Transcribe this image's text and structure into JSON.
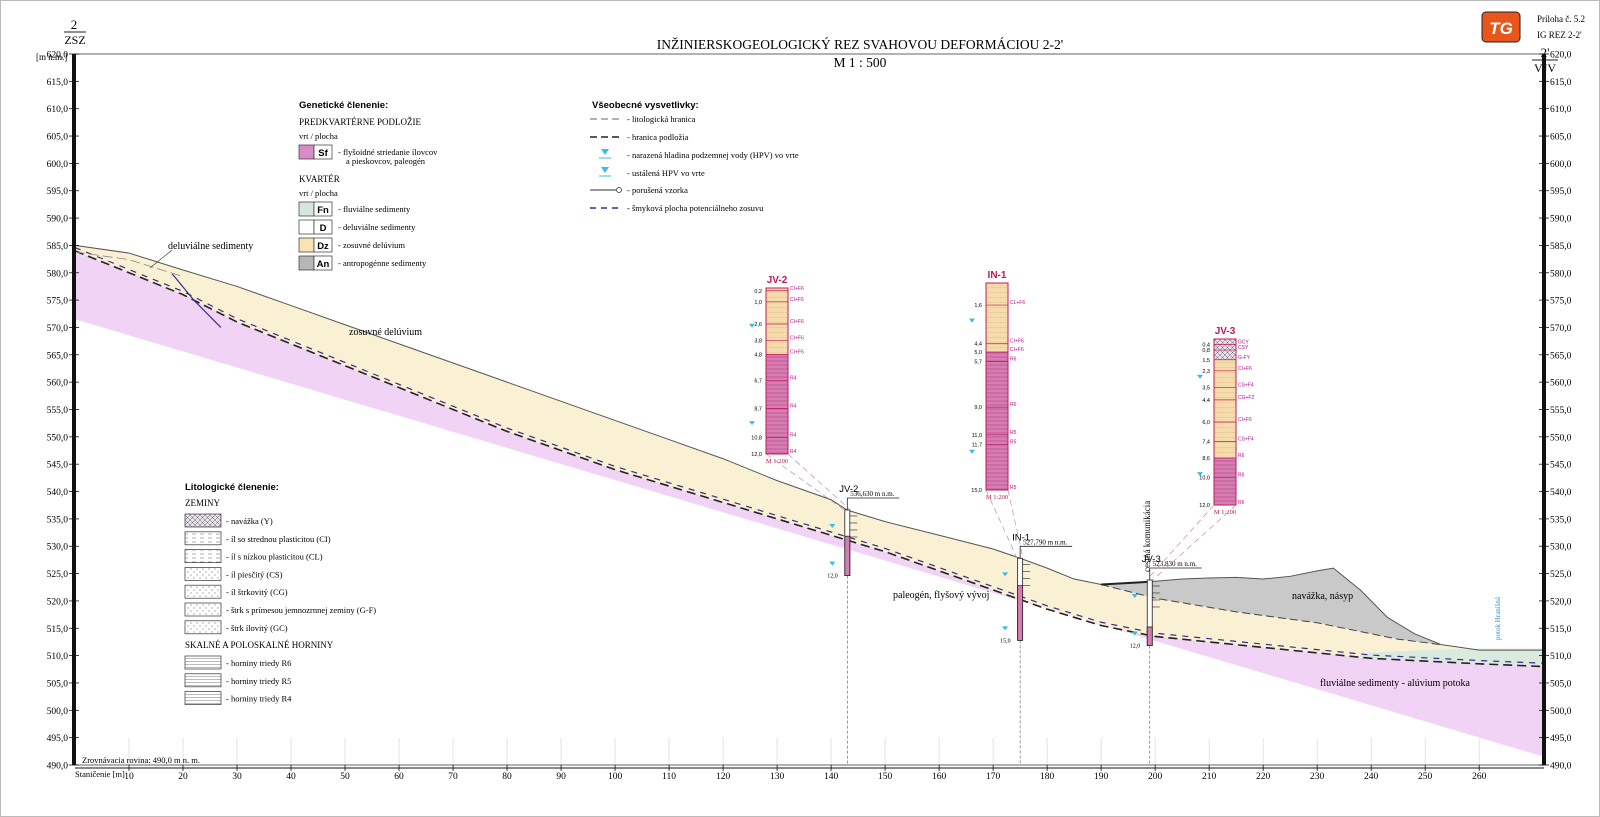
{
  "header": {
    "title": "INŽINIERSKOGEOLOGICKÝ REZ SVAHOVOU DEFORMÁCIOU 2-2'",
    "scale": "M 1 : 500",
    "appendix": "Príloha č. 5.2",
    "drawing_id": "IG REZ 2-2'",
    "logo_text": "TG"
  },
  "section_ends": {
    "left": {
      "number": "2",
      "direction": "ZSZ"
    },
    "right": {
      "number": "2'",
      "direction": "VJV"
    }
  },
  "axes": {
    "y_unit": "[m n.m.]",
    "y_ticks": [
      "620,0",
      "615,0",
      "610,0",
      "605,0",
      "600,0",
      "595,0",
      "590,0",
      "585,0",
      "580,0",
      "575,0",
      "570,0",
      "565,0",
      "560,0",
      "555,0",
      "550,0",
      "545,0",
      "540,0",
      "535,0",
      "530,0",
      "525,0",
      "520,0",
      "515,0",
      "510,0",
      "505,0",
      "500,0",
      "495,0",
      "490,0"
    ],
    "x_label": "Staničenie [m]",
    "x_ticks": [
      "10",
      "20",
      "30",
      "40",
      "50",
      "60",
      "70",
      "80",
      "90",
      "100",
      "110",
      "120",
      "130",
      "140",
      "150",
      "160",
      "170",
      "180",
      "190",
      "200",
      "210",
      "220",
      "230",
      "240",
      "250",
      "260"
    ],
    "datum": "Zrovnávacia rovina: 490,0 m n. m."
  },
  "legend_genetic": {
    "title": "Genetické členenie:",
    "group1": "PREDKVARTÉRNE PODLOŽIE",
    "group1_sub": "vrt / plocha",
    "group2": "KVARTÉR",
    "group2_sub": "vrt / plocha",
    "items": [
      {
        "code": "Sf",
        "line1": "- flyšoidné striedanie ílovcov",
        "line2": "a pieskovcov, paleogén",
        "color": "#d98cc8"
      },
      {
        "code": "Fn",
        "line1": "- fluviálne sedimenty",
        "line2": "",
        "color": "#d6e6dc"
      },
      {
        "code": "D",
        "line1": "- deluviálne sedimenty",
        "line2": "",
        "color": "#ffffff"
      },
      {
        "code": "Dz",
        "line1": "- zosuvné delúvium",
        "line2": "",
        "color": "#f7e3b4"
      },
      {
        "code": "An",
        "line1": "- antropogénne sedimenty",
        "line2": "",
        "color": "#b7b7b7"
      }
    ]
  },
  "legend_general": {
    "title": "Všeobecné vysvetlivky:",
    "items": [
      "- litologická hranica",
      "- hranica podložia",
      "- narazená hladina podzemnej vody (HPV) vo vrte",
      "- ustálená HPV vo vrte",
      "- porušená vzorka",
      "- šmyková plocha potenciálneho zosuvu"
    ]
  },
  "legend_litho": {
    "title": "Litologické členenie:",
    "soils_title": "ZEMINY",
    "soils": [
      "- navážka (Y)",
      "- íl so strednou plasticitou (CI)",
      "- íl s nízkou plasticitou (CL)",
      "- íl piesčitý (CS)",
      "- íl štrkovitý (CG)",
      "- štrk s prímesou jemnozrnnej zeminy (G-F)",
      "- štrk ílovitý (GC)"
    ],
    "rocks_title": "SKALNÉ A POLOSKALNÉ HORNINY",
    "rocks": [
      "- horniny triedy R6",
      "- horniny triedy R5",
      "- horniny triedy R4"
    ]
  },
  "profile_labels": {
    "deluvial": "deluviálne sedimenty",
    "landslide": "zosuvné delúvium",
    "paleogene": "paleogén, flyšový vývoj",
    "fill": "navážka, násyp",
    "fluvial": "fluviálne sedimenty - alúvium potoka",
    "road": "cestná komunikácia",
    "stream": "potok Hranišná"
  },
  "boreholes": [
    {
      "name": "JV-2",
      "elevation": "536,630 m n.m.",
      "depth_total": "12,0",
      "scale": "M 1:200",
      "depths": [
        "0,2",
        "1,0",
        "2,6",
        "3,8",
        "4,8",
        "6,7",
        "8,7",
        "10,8",
        "12,0"
      ],
      "codes": [
        "CI+F6",
        "CI+F6",
        "CI+F6",
        "CI+F6",
        "CI+F6",
        "R4",
        "R4",
        "R4",
        "R4"
      ]
    },
    {
      "name": "IN-1",
      "elevation": "527,790 m n.m.",
      "depth_total": "15,0",
      "scale": "M 1:200",
      "depths": [
        "1,6",
        "4,4",
        "5,0",
        "5,7",
        "9,0",
        "11,0",
        "11,7",
        "15,0"
      ],
      "codes": [
        "CL+F6",
        "CI+F6",
        "CI+F6",
        "R6",
        "R6",
        "R5",
        "R5",
        "R5"
      ]
    },
    {
      "name": "JV-3",
      "elevation": "523,830 m n.m.",
      "depth_total": "12,0",
      "scale": "M 1:200",
      "depths": [
        "0,4",
        "0,8",
        "1,5",
        "2,3",
        "3,5",
        "4,4",
        "6,0",
        "7,4",
        "8,6",
        "10,0",
        "12,0"
      ],
      "codes": [
        "GCY",
        "CSY",
        "G-FY",
        "CI+F6",
        "CS+F4",
        "CG+F2",
        "CI+F6",
        "CS+F4",
        "R6",
        "R6",
        "R6"
      ]
    }
  ],
  "colors": {
    "bedrock": "#f1d4f5",
    "landslide": "#faf0d4",
    "fill": "#c9c9c9",
    "fluvial": "#dbeadf",
    "slip": "#3a2a8a",
    "water": "#3bbbe6",
    "borehole_red": "#c0185a",
    "logo": "#e8561c"
  }
}
